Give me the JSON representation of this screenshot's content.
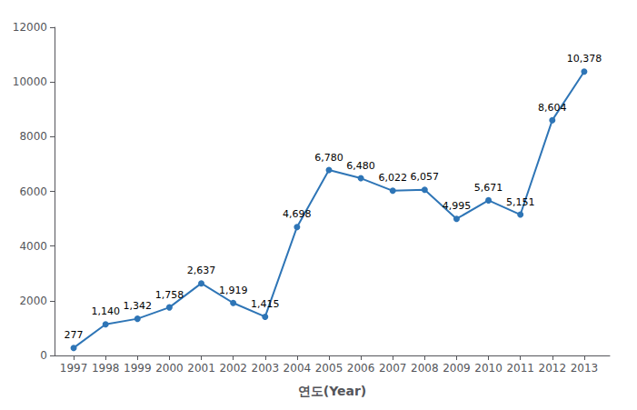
{
  "chart_data": {
    "type": "line",
    "xlabel": "연도(Year)",
    "x": [
      1997,
      1998,
      1999,
      2000,
      2001,
      2002,
      2003,
      2004,
      2005,
      2006,
      2007,
      2008,
      2009,
      2010,
      2011,
      2012,
      2013
    ],
    "values": [
      277,
      1140,
      1342,
      1758,
      2637,
      1919,
      1415,
      4698,
      6780,
      6480,
      6022,
      6057,
      4995,
      5671,
      5151,
      8604,
      10378
    ],
    "value_labels": [
      "277",
      "1,140",
      "1,342",
      "1,758",
      "2,637",
      "1,919",
      "1,415",
      "4,698",
      "6,780",
      "6,480",
      "6,022",
      "6,057",
      "4,995",
      "5,671",
      "5,151",
      "8,604",
      "10,378"
    ],
    "data_labels": true,
    "color": "#2E75B6",
    "marker": "circle",
    "xlim": [
      1996.4,
      2013.8
    ],
    "xticks": [
      1997,
      1998,
      1999,
      2000,
      2001,
      2002,
      2003,
      2004,
      2005,
      2006,
      2007,
      2008,
      2009,
      2010,
      2011,
      2012,
      2013
    ],
    "ylim": [
      0,
      12000
    ],
    "yticks": [
      0,
      2000,
      4000,
      6000,
      8000,
      10000,
      12000
    ],
    "grid": false
  }
}
